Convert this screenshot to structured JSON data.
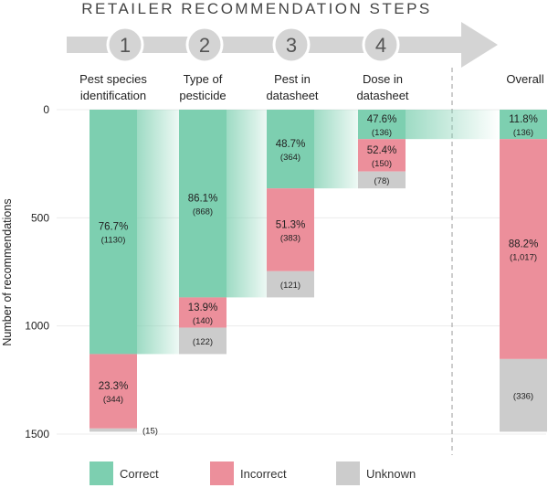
{
  "chart_data": {
    "type": "bar",
    "title": "RETAILER RECOMMENDATION STEPS",
    "ylabel": "Number of recommendations",
    "ylim": [
      0,
      1500
    ],
    "y_inverted": true,
    "yticks": [
      0,
      500,
      1000,
      1500
    ],
    "legend_position": "bottom",
    "colors": {
      "Correct": "#7dcfb0",
      "Incorrect": "#ec8f9b",
      "Unknown": "#cccccc",
      "arrow": "#d4d4d4",
      "divider": "#999999"
    },
    "legend": [
      "Correct",
      "Incorrect",
      "Unknown"
    ],
    "steps": [
      {
        "num": "1",
        "label": [
          "Pest species",
          "identification"
        ],
        "segments": [
          {
            "category": "Correct",
            "value": 1130,
            "pct_label": "76.7%",
            "count_label": "(1130)"
          },
          {
            "category": "Incorrect",
            "value": 344,
            "pct_label": "23.3%",
            "count_label": "(344)"
          },
          {
            "category": "Unknown",
            "value": 15,
            "pct_label": "",
            "count_label": "(15)"
          }
        ]
      },
      {
        "num": "2",
        "label": [
          "Type of",
          "pesticide"
        ],
        "segments": [
          {
            "category": "Correct",
            "value": 868,
            "pct_label": "86.1%",
            "count_label": "(868)"
          },
          {
            "category": "Incorrect",
            "value": 140,
            "pct_label": "13.9%",
            "count_label": "(140)"
          },
          {
            "category": "Unknown",
            "value": 122,
            "pct_label": "",
            "count_label": "(122)"
          }
        ]
      },
      {
        "num": "3",
        "label": [
          "Pest in",
          "datasheet"
        ],
        "segments": [
          {
            "category": "Correct",
            "value": 364,
            "pct_label": "48.7%",
            "count_label": "(364)"
          },
          {
            "category": "Incorrect",
            "value": 383,
            "pct_label": "51.3%",
            "count_label": "(383)"
          },
          {
            "category": "Unknown",
            "value": 121,
            "pct_label": "",
            "count_label": "(121)"
          }
        ]
      },
      {
        "num": "4",
        "label": [
          "Dose in",
          "datasheet"
        ],
        "segments": [
          {
            "category": "Correct",
            "value": 136,
            "pct_label": "47.6%",
            "count_label": "(136)"
          },
          {
            "category": "Incorrect",
            "value": 150,
            "pct_label": "52.4%",
            "count_label": "(150)"
          },
          {
            "category": "Unknown",
            "value": 78,
            "pct_label": "",
            "count_label": "(78)"
          }
        ]
      }
    ],
    "overall": {
      "label": "Overall",
      "segments": [
        {
          "category": "Correct",
          "value": 136,
          "pct_label": "11.8%",
          "count_label": "(136)"
        },
        {
          "category": "Incorrect",
          "value": 1017,
          "pct_label": "88.2%",
          "count_label": "(1,017)"
        },
        {
          "category": "Unknown",
          "value": 336,
          "pct_label": "",
          "count_label": "(336)"
        }
      ]
    }
  }
}
